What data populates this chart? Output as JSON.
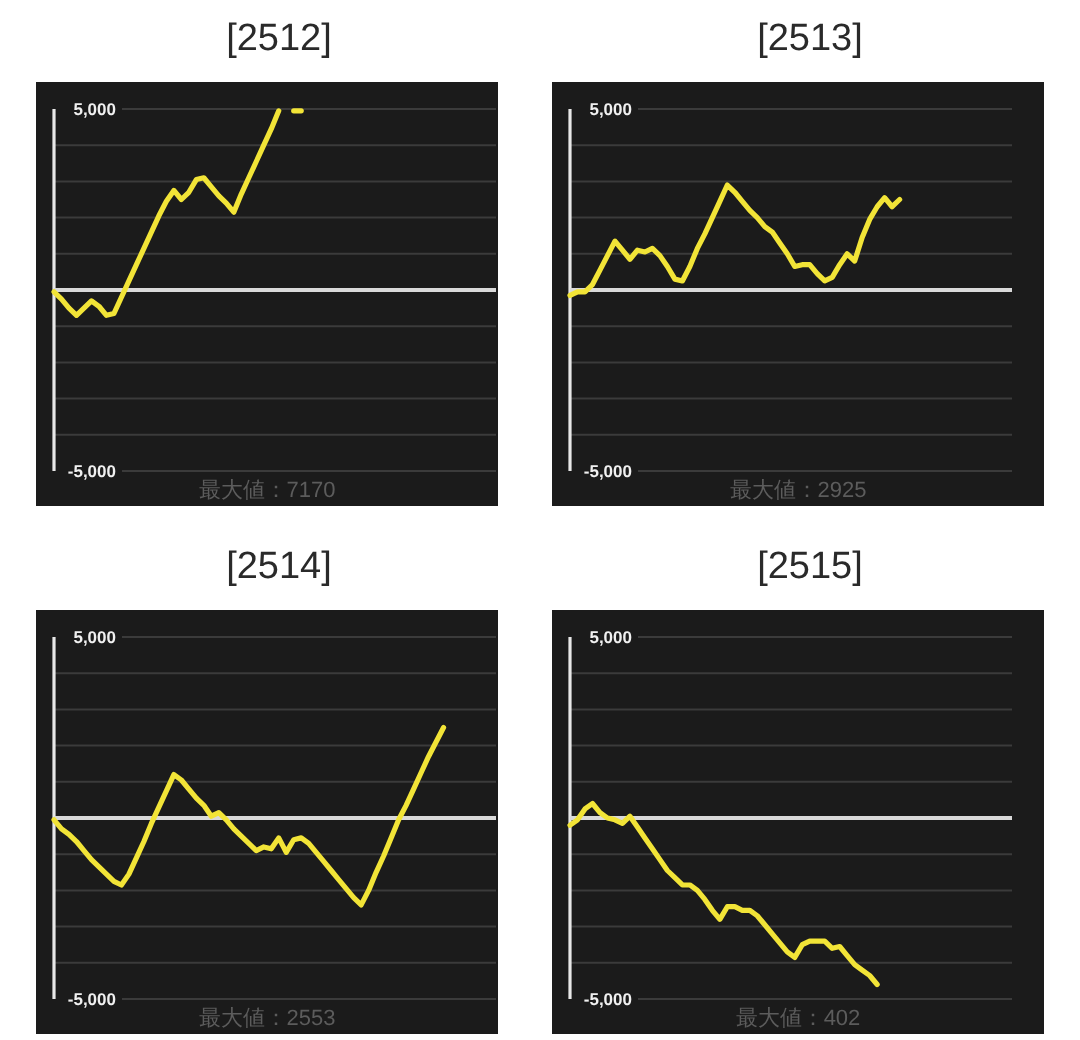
{
  "chart_data": [
    {
      "type": "line",
      "title": "[2512]",
      "categories": [
        null,
        null,
        null,
        null,
        null,
        null,
        null,
        null,
        null,
        null,
        null,
        null,
        null,
        null,
        null,
        null,
        null,
        null,
        null,
        null,
        null,
        null,
        null,
        null,
        null,
        null,
        null,
        null,
        null,
        null,
        null,
        null,
        null,
        null,
        null,
        null,
        null,
        null,
        null,
        null,
        null,
        null,
        null,
        null,
        null,
        null,
        null,
        null,
        null,
        null,
        null,
        null,
        null,
        null,
        null,
        null,
        null,
        null,
        null,
        null
      ],
      "series": [
        {
          "color": "#f2e437",
          "values": [
            -50,
            -250,
            -500,
            -700,
            -500,
            -300,
            -450,
            -700,
            -650,
            -200,
            250,
            700,
            1150,
            1600,
            2050,
            2450,
            2750,
            2500,
            2700,
            3050,
            3100,
            2850,
            2600,
            2400,
            2150,
            2650,
            3100,
            3550,
            4000,
            4450,
            4950,
            null,
            null,
            null,
            null,
            null,
            null,
            null,
            null,
            null,
            null,
            null,
            null,
            null,
            null,
            null,
            null,
            null,
            null,
            null,
            null,
            null,
            null,
            null,
            null,
            null,
            null,
            null,
            null,
            null
          ]
        },
        {
          "color": "#f2e437",
          "values": [
            null,
            null,
            null,
            null,
            null,
            null,
            null,
            null,
            null,
            null,
            null,
            null,
            null,
            null,
            null,
            null,
            null,
            null,
            null,
            null,
            null,
            null,
            null,
            null,
            null,
            null,
            null,
            null,
            null,
            null,
            null,
            null,
            4950,
            4950,
            null,
            null,
            null,
            null,
            null,
            null,
            null,
            null,
            null,
            null,
            null,
            null,
            null,
            null,
            null,
            null,
            null,
            null,
            null,
            null,
            null,
            null,
            null,
            null,
            null,
            null
          ]
        }
      ],
      "ylim": [
        -5000,
        5000
      ],
      "yticks": [
        {
          "value": -5000,
          "label": "-5,000"
        },
        {
          "value": -4000,
          "label": null
        },
        {
          "value": -3000,
          "label": null
        },
        {
          "value": -2000,
          "label": null
        },
        {
          "value": -1000,
          "label": null
        },
        {
          "value": 0,
          "label": null
        },
        {
          "value": 1000,
          "label": null
        },
        {
          "value": 2000,
          "label": null
        },
        {
          "value": 3000,
          "label": null
        },
        {
          "value": 4000,
          "label": null
        },
        {
          "value": 5000,
          "label": "5,000"
        }
      ],
      "grid": "y",
      "ref_lines": [
        {
          "axis": "y",
          "value": 0,
          "color": "#d9d9d9"
        }
      ],
      "annotations": [
        "最大値：7170"
      ]
    },
    {
      "type": "line",
      "title": "[2513]",
      "categories": [
        null,
        null,
        null,
        null,
        null,
        null,
        null,
        null,
        null,
        null,
        null,
        null,
        null,
        null,
        null,
        null,
        null,
        null,
        null,
        null,
        null,
        null,
        null,
        null,
        null,
        null,
        null,
        null,
        null,
        null,
        null,
        null,
        null,
        null,
        null,
        null,
        null,
        null,
        null,
        null,
        null,
        null,
        null,
        null,
        null,
        null,
        null,
        null,
        null,
        null,
        null,
        null,
        null,
        null,
        null,
        null,
        null,
        null,
        null,
        null
      ],
      "series": [
        {
          "color": "#f2e437",
          "values": [
            -150,
            -50,
            -50,
            150,
            550,
            950,
            1350,
            1100,
            850,
            1100,
            1050,
            1150,
            950,
            650,
            300,
            250,
            650,
            1150,
            1550,
            2000,
            2450,
            2900,
            2700,
            2450,
            2200,
            2000,
            1750,
            1600,
            1300,
            1000,
            650,
            700,
            700,
            450,
            250,
            350,
            700,
            1000,
            800,
            1450,
            1950,
            2300,
            2550,
            2300,
            2500,
            null,
            null,
            null,
            null,
            null,
            null,
            null,
            null,
            null,
            null,
            null,
            null,
            null,
            null,
            null
          ]
        }
      ],
      "ylim": [
        -5000,
        5000
      ],
      "yticks": [
        {
          "value": -5000,
          "label": "-5,000"
        },
        {
          "value": -4000,
          "label": null
        },
        {
          "value": -3000,
          "label": null
        },
        {
          "value": -2000,
          "label": null
        },
        {
          "value": -1000,
          "label": null
        },
        {
          "value": 0,
          "label": null
        },
        {
          "value": 1000,
          "label": null
        },
        {
          "value": 2000,
          "label": null
        },
        {
          "value": 3000,
          "label": null
        },
        {
          "value": 4000,
          "label": null
        },
        {
          "value": 5000,
          "label": "5,000"
        }
      ],
      "grid": "y",
      "ref_lines": [
        {
          "axis": "y",
          "value": 0,
          "color": "#d9d9d9"
        }
      ],
      "annotations": [
        "最大値：2925"
      ]
    },
    {
      "type": "line",
      "title": "[2514]",
      "categories": [
        null,
        null,
        null,
        null,
        null,
        null,
        null,
        null,
        null,
        null,
        null,
        null,
        null,
        null,
        null,
        null,
        null,
        null,
        null,
        null,
        null,
        null,
        null,
        null,
        null,
        null,
        null,
        null,
        null,
        null,
        null,
        null,
        null,
        null,
        null,
        null,
        null,
        null,
        null,
        null,
        null,
        null,
        null,
        null,
        null,
        null,
        null,
        null,
        null,
        null,
        null,
        null,
        null,
        null,
        null,
        null,
        null,
        null,
        null,
        null
      ],
      "series": [
        {
          "color": "#f2e437",
          "values": [
            -50,
            -300,
            -450,
            -650,
            -900,
            -1150,
            -1350,
            -1550,
            -1750,
            -1850,
            -1550,
            -1100,
            -650,
            -150,
            300,
            750,
            1200,
            1050,
            800,
            550,
            350,
            50,
            150,
            -50,
            -300,
            -500,
            -700,
            -900,
            -800,
            -850,
            -550,
            -950,
            -600,
            -550,
            -700,
            -950,
            -1200,
            -1450,
            -1700,
            -1950,
            -2200,
            -2400,
            -2000,
            -1500,
            -1050,
            -550,
            -50,
            350,
            800,
            1250,
            1700,
            2100,
            2500,
            null,
            null,
            null,
            null,
            null,
            null,
            null
          ]
        }
      ],
      "ylim": [
        -5000,
        5000
      ],
      "yticks": [
        {
          "value": -5000,
          "label": "-5,000"
        },
        {
          "value": -4000,
          "label": null
        },
        {
          "value": -3000,
          "label": null
        },
        {
          "value": -2000,
          "label": null
        },
        {
          "value": -1000,
          "label": null
        },
        {
          "value": 0,
          "label": null
        },
        {
          "value": 1000,
          "label": null
        },
        {
          "value": 2000,
          "label": null
        },
        {
          "value": 3000,
          "label": null
        },
        {
          "value": 4000,
          "label": null
        },
        {
          "value": 5000,
          "label": "5,000"
        }
      ],
      "grid": "y",
      "ref_lines": [
        {
          "axis": "y",
          "value": 0,
          "color": "#d9d9d9"
        }
      ],
      "annotations": [
        "最大値：2553"
      ]
    },
    {
      "type": "line",
      "title": "[2515]",
      "categories": [
        null,
        null,
        null,
        null,
        null,
        null,
        null,
        null,
        null,
        null,
        null,
        null,
        null,
        null,
        null,
        null,
        null,
        null,
        null,
        null,
        null,
        null,
        null,
        null,
        null,
        null,
        null,
        null,
        null,
        null,
        null,
        null,
        null,
        null,
        null,
        null,
        null,
        null,
        null,
        null,
        null,
        null,
        null,
        null,
        null,
        null,
        null,
        null,
        null,
        null,
        null,
        null,
        null,
        null,
        null,
        null,
        null,
        null,
        null,
        null
      ],
      "series": [
        {
          "color": "#f2e437",
          "values": [
            -200,
            -50,
            250,
            400,
            150,
            0,
            -50,
            -150,
            50,
            -250,
            -550,
            -850,
            -1150,
            -1450,
            -1650,
            -1850,
            -1850,
            -2000,
            -2250,
            -2550,
            -2800,
            -2450,
            -2450,
            -2550,
            -2550,
            -2700,
            -2950,
            -3200,
            -3450,
            -3700,
            -3850,
            -3500,
            -3400,
            -3400,
            -3400,
            -3600,
            -3550,
            -3800,
            -4050,
            -4200,
            -4350,
            -4600,
            null,
            null,
            null,
            null,
            null,
            null,
            null,
            null,
            null,
            null,
            null,
            null,
            null,
            null,
            null,
            null,
            null,
            null
          ]
        }
      ],
      "ylim": [
        -5000,
        5000
      ],
      "yticks": [
        {
          "value": -5000,
          "label": "-5,000"
        },
        {
          "value": -4000,
          "label": null
        },
        {
          "value": -3000,
          "label": null
        },
        {
          "value": -2000,
          "label": null
        },
        {
          "value": -1000,
          "label": null
        },
        {
          "value": 0,
          "label": null
        },
        {
          "value": 1000,
          "label": null
        },
        {
          "value": 2000,
          "label": null
        },
        {
          "value": 3000,
          "label": null
        },
        {
          "value": 4000,
          "label": null
        },
        {
          "value": 5000,
          "label": "5,000"
        }
      ],
      "grid": "y",
      "ref_lines": [
        {
          "axis": "y",
          "value": 0,
          "color": "#d9d9d9"
        }
      ],
      "annotations": [
        "最大値：402"
      ]
    }
  ]
}
